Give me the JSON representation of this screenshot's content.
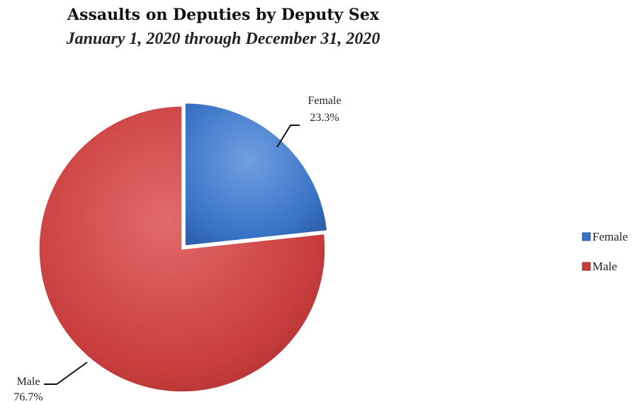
{
  "chart_data": {
    "type": "pie",
    "title": "Assaults on Deputies by Deputy Sex",
    "subtitle": "January 1, 2020 through December 31, 2020",
    "slices": [
      {
        "label": "Female",
        "value": 23.3,
        "value_label": "23.3%",
        "color": "#3a73c6"
      },
      {
        "label": "Male",
        "value": 76.7,
        "value_label": "76.7%",
        "color": "#c93d3d"
      }
    ],
    "legend": {
      "placement": "right",
      "entries": [
        "Female",
        "Male"
      ]
    }
  }
}
